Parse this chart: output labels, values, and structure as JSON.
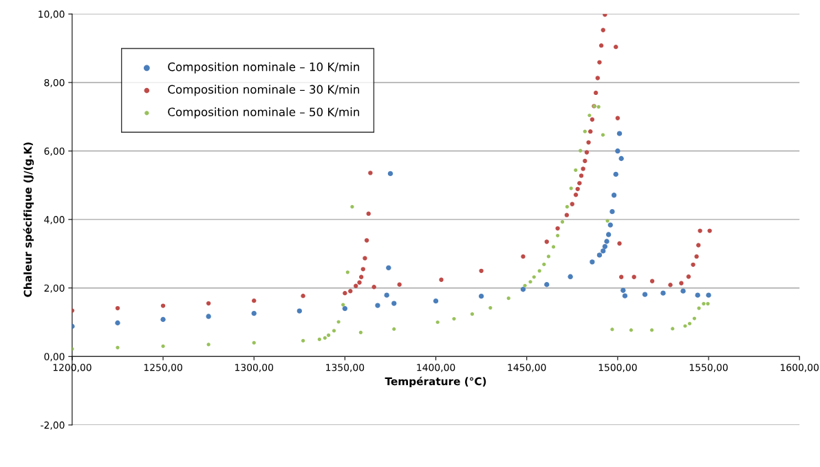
{
  "chart_data": {
    "type": "scatter",
    "xlabel": "Température (°C)",
    "ylabel": "Chaleur spécifique (J/(g.K)",
    "xlim": [
      1200,
      1600
    ],
    "ylim": [
      -2,
      10
    ],
    "xticks": [
      {
        "value": 1200,
        "label": "1200,00"
      },
      {
        "value": 1250,
        "label": "1250,00"
      },
      {
        "value": 1300,
        "label": "1300,00"
      },
      {
        "value": 1350,
        "label": "1350,00"
      },
      {
        "value": 1400,
        "label": "1400,00"
      },
      {
        "value": 1450,
        "label": "1450,00"
      },
      {
        "value": 1500,
        "label": "1500,00"
      },
      {
        "value": 1550,
        "label": "1550,00"
      },
      {
        "value": 1600,
        "label": "1600,00"
      }
    ],
    "yticks": [
      {
        "value": -2,
        "label": "-2,00"
      },
      {
        "value": 0,
        "label": "0,00"
      },
      {
        "value": 2,
        "label": "2,00"
      },
      {
        "value": 4,
        "label": "4,00"
      },
      {
        "value": 6,
        "label": "6,00"
      },
      {
        "value": 8,
        "label": "8,00"
      },
      {
        "value": 10,
        "label": "10,00"
      }
    ],
    "grid": "y",
    "legend": "top left",
    "marker": "circle",
    "series": [
      {
        "name": "Composition nominale – 10 K/min",
        "color": "#4a7ebb",
        "x": [
          1200,
          1225,
          1250,
          1275,
          1300,
          1325,
          1350,
          1368,
          1373,
          1374,
          1375,
          1377,
          1400,
          1425,
          1448,
          1461,
          1474,
          1486,
          1490,
          1492,
          1493,
          1494,
          1495,
          1496,
          1497,
          1498,
          1499,
          1500,
          1501,
          1502,
          1503,
          1504,
          1515,
          1525,
          1536,
          1544,
          1550
        ],
        "values": [
          0.88,
          0.98,
          1.08,
          1.17,
          1.26,
          1.33,
          1.4,
          1.49,
          1.79,
          2.59,
          5.34,
          1.55,
          1.62,
          1.76,
          1.96,
          2.1,
          2.33,
          2.76,
          2.96,
          3.08,
          3.21,
          3.36,
          3.56,
          3.84,
          4.23,
          4.71,
          5.32,
          6.0,
          6.51,
          5.78,
          1.93,
          1.77,
          1.81,
          1.85,
          1.91,
          1.79,
          1.79
        ]
      },
      {
        "name": "Composition nominale – 30 K/min",
        "color": "#be4b48",
        "x": [
          1200,
          1225,
          1250,
          1275,
          1300,
          1327,
          1350,
          1353,
          1356,
          1358,
          1359,
          1360,
          1361,
          1362,
          1363,
          1364,
          1366,
          1380,
          1403,
          1425,
          1448,
          1461,
          1467,
          1472,
          1475,
          1477,
          1478,
          1479,
          1480,
          1481,
          1482,
          1483,
          1484,
          1485,
          1486,
          1487,
          1488,
          1489,
          1490,
          1491,
          1492,
          1493,
          1499,
          1500,
          1501,
          1502,
          1509,
          1519,
          1529,
          1535,
          1539,
          1541.5,
          1543.4,
          1544.4,
          1545.3,
          1550.6
        ],
        "values": [
          1.34,
          1.41,
          1.48,
          1.55,
          1.63,
          1.77,
          1.85,
          1.91,
          2.06,
          2.16,
          2.32,
          2.55,
          2.87,
          3.39,
          4.17,
          5.36,
          2.03,
          2.1,
          2.24,
          2.5,
          2.92,
          3.35,
          3.74,
          4.13,
          4.45,
          4.72,
          4.89,
          5.06,
          5.28,
          5.48,
          5.71,
          5.96,
          6.25,
          6.57,
          6.92,
          7.31,
          7.7,
          8.13,
          8.59,
          9.08,
          9.53,
          9.98,
          9.04,
          6.96,
          3.3,
          2.32,
          2.32,
          2.2,
          2.09,
          2.14,
          2.33,
          2.68,
          2.92,
          3.25,
          3.67,
          3.67
        ]
      },
      {
        "name": "Composition nominale – 50 K/min",
        "color": "#98c15a",
        "x": [
          1200,
          1225,
          1250,
          1275,
          1300,
          1327,
          1336,
          1339,
          1341,
          1344,
          1346.5,
          1349,
          1351.5,
          1354,
          1358.7,
          1377,
          1401,
          1410,
          1420,
          1430,
          1440,
          1449,
          1452,
          1454,
          1457,
          1459.5,
          1462,
          1464.7,
          1467,
          1469.6,
          1472.2,
          1474.4,
          1476.9,
          1479.5,
          1482,
          1484.5,
          1487.1,
          1489.5,
          1491.9,
          1494.4,
          1497,
          1507.4,
          1518.8,
          1530.2,
          1537.1,
          1539.6,
          1542.2,
          1544.7,
          1547.3,
          1549.6
        ],
        "values": [
          0.22,
          0.26,
          0.3,
          0.35,
          0.4,
          0.46,
          0.5,
          0.54,
          0.62,
          0.75,
          1.01,
          1.51,
          2.46,
          4.37,
          0.7,
          0.8,
          1.0,
          1.1,
          1.24,
          1.42,
          1.7,
          2.07,
          2.18,
          2.32,
          2.5,
          2.69,
          2.92,
          3.2,
          3.53,
          3.93,
          4.37,
          4.91,
          5.44,
          6.01,
          6.57,
          7.04,
          7.31,
          7.29,
          6.47,
          3.96,
          0.79,
          0.77,
          0.77,
          0.81,
          0.89,
          0.96,
          1.11,
          1.41,
          1.54,
          1.54
        ]
      }
    ]
  }
}
